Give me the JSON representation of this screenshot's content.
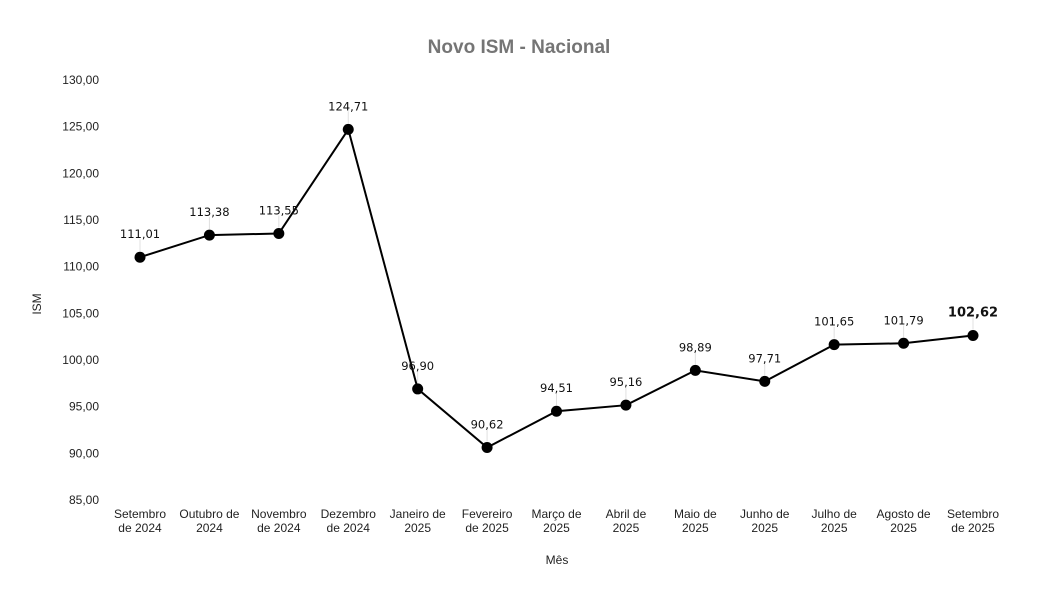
{
  "chart_data": {
    "type": "line",
    "title": "Novo ISM - Nacional",
    "xlabel": "Mês",
    "ylabel": "ISM",
    "ylim": [
      85,
      130
    ],
    "yticks": [
      "85,00",
      "90,00",
      "95,00",
      "100,00",
      "105,00",
      "110,00",
      "115,00",
      "120,00",
      "125,00",
      "130,00"
    ],
    "ytick_values": [
      85,
      90,
      95,
      100,
      105,
      110,
      115,
      120,
      125,
      130
    ],
    "grid": false,
    "legend": null,
    "categories": [
      [
        "Setembro",
        "de 2024"
      ],
      [
        "Outubro de",
        "2024"
      ],
      [
        "Novembro",
        "de 2024"
      ],
      [
        "Dezembro",
        "de 2024"
      ],
      [
        "Janeiro de",
        "2025"
      ],
      [
        "Fevereiro",
        "de 2025"
      ],
      [
        "Março de",
        "2025"
      ],
      [
        "Abril de",
        "2025"
      ],
      [
        "Maio de",
        "2025"
      ],
      [
        "Junho de",
        "2025"
      ],
      [
        "Julho de",
        "2025"
      ],
      [
        "Agosto de",
        "2025"
      ],
      [
        "Setembro",
        "de 2025"
      ]
    ],
    "series": [
      {
        "name": "ISM",
        "color": "#000000",
        "values": [
          111.01,
          113.38,
          113.55,
          124.71,
          96.9,
          90.62,
          94.51,
          95.16,
          98.89,
          97.71,
          101.65,
          101.79,
          102.62
        ],
        "labels": [
          "111,01",
          "113,38",
          "113,55",
          "124,71",
          "96,90",
          "90,62",
          "94,51",
          "95,16",
          "98,89",
          "97,71",
          "101,65",
          "101,79",
          "102,62"
        ],
        "highlight_last": true
      }
    ]
  }
}
